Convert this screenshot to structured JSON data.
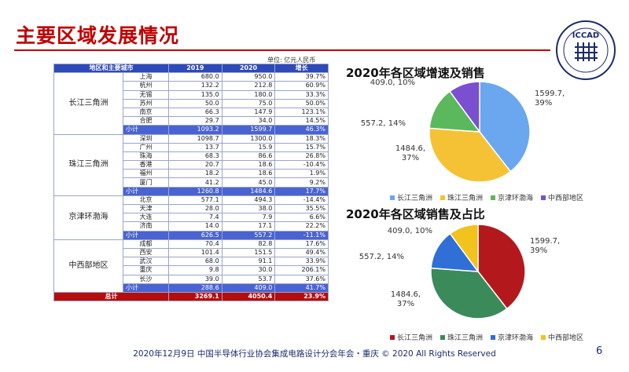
{
  "page": {
    "title": "主要区域发展情况",
    "unit": "单位: 亿元人民币",
    "footer": "2020年12月9日 中国半导体行业协会集成电路设计分会年会・重庆 © 2020 All Rights Reserved",
    "page_number": "6",
    "logo_text": "ICCAD"
  },
  "table": {
    "headers": [
      "地区和主要城市",
      "2019",
      "2020",
      "增长"
    ],
    "groups": [
      {
        "region": "长江三角洲",
        "rows": [
          [
            "上海",
            "680.0",
            "950.0",
            "39.7%"
          ],
          [
            "杭州",
            "132.2",
            "212.8",
            "60.9%"
          ],
          [
            "无锡",
            "135.0",
            "180.0",
            "33.3%"
          ],
          [
            "苏州",
            "50.0",
            "75.0",
            "50.0%"
          ],
          [
            "南京",
            "66.3",
            "147.9",
            "123.1%"
          ],
          [
            "合肥",
            "29.7",
            "34.0",
            "14.5%"
          ]
        ],
        "subtotal": [
          "小计",
          "1093.2",
          "1599.7",
          "46.3%"
        ]
      },
      {
        "region": "珠江三角洲",
        "rows": [
          [
            "深圳",
            "1098.7",
            "1300.0",
            "18.3%"
          ],
          [
            "广州",
            "13.7",
            "15.9",
            "15.7%"
          ],
          [
            "珠海",
            "68.3",
            "86.6",
            "26.8%"
          ],
          [
            "香港",
            "20.7",
            "18.6",
            "-10.4%"
          ],
          [
            "福州",
            "18.2",
            "18.6",
            "1.9%"
          ],
          [
            "厦门",
            "41.2",
            "45.0",
            "9.2%"
          ]
        ],
        "subtotal": [
          "小计",
          "1260.8",
          "1484.6",
          "17.7%"
        ]
      },
      {
        "region": "京津环渤海",
        "rows": [
          [
            "北京",
            "577.1",
            "494.3",
            "-14.4%"
          ],
          [
            "天津",
            "28.0",
            "38.0",
            "35.5%"
          ],
          [
            "大连",
            "7.4",
            "7.9",
            "6.6%"
          ],
          [
            "济南",
            "14.0",
            "17.1",
            "22.2%"
          ]
        ],
        "subtotal": [
          "小计",
          "626.5",
          "557.2",
          "-11.1%"
        ]
      },
      {
        "region": "中西部地区",
        "rows": [
          [
            "成都",
            "70.4",
            "82.8",
            "17.6%"
          ],
          [
            "西安",
            "101.4",
            "151.5",
            "49.4%"
          ],
          [
            "武汉",
            "68.0",
            "91.1",
            "33.9%"
          ],
          [
            "重庆",
            "9.8",
            "30.0",
            "206.1%"
          ],
          [
            "长沙",
            "39.0",
            "53.7",
            "37.6%"
          ]
        ],
        "subtotal": [
          "小计",
          "288.6",
          "409.0",
          "41.7%"
        ]
      }
    ],
    "total": [
      "总计",
      "3269.1",
      "4050.4",
      "23.9%"
    ]
  },
  "chart_data": [
    {
      "type": "pie",
      "title": "2020年各区域增速及销售",
      "categories": [
        "长江三角洲",
        "珠江三角洲",
        "京津环渤海",
        "中西部地区"
      ],
      "values": [
        1599.7,
        1484.6,
        557.2,
        409.0
      ],
      "labels": [
        "1599.7, 39%",
        "1484.6, 37%",
        "557.2, 14%",
        "409.0, 10%"
      ],
      "colors": [
        "#6aa7ef",
        "#f5c236",
        "#5cb85c",
        "#7a4fd0"
      ],
      "legend": "bottom"
    },
    {
      "type": "pie",
      "title": "2020年各区域销售及占比",
      "categories": [
        "长江三角洲",
        "珠江三角洲",
        "京津环渤海",
        "中西部地区"
      ],
      "values": [
        1599.7,
        1484.6,
        557.2,
        409.0
      ],
      "labels": [
        "1599.7, 39%",
        "1484.6, 37%",
        "557.2, 14%",
        "409.0, 10%"
      ],
      "colors": [
        "#b3191c",
        "#3b8a5a",
        "#2f6fd6",
        "#f2c21d"
      ],
      "legend": "bottom"
    }
  ]
}
